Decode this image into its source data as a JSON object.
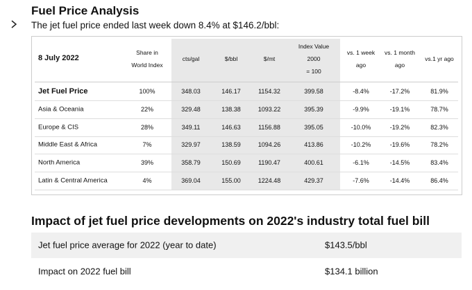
{
  "header": {
    "title": "Fuel Price Analysis",
    "subtitle": "The jet fuel price ended last week down 8.4% at $146.2/bbl:"
  },
  "table": {
    "columns": [
      [
        "8 July 2022"
      ],
      [
        "Share in",
        "World Index"
      ],
      [
        "cts/gal"
      ],
      [
        "$/bbl"
      ],
      [
        "$/mt"
      ],
      [
        "Index Value",
        "2000",
        "= 100"
      ],
      [
        "vs. 1 week",
        "ago"
      ],
      [
        "vs. 1 month",
        "ago"
      ],
      [
        "vs.1 yr ago"
      ]
    ],
    "rows": [
      [
        "Jet Fuel Price",
        "100%",
        "348.03",
        "146.17",
        "1154.32",
        "399.58",
        "-8.4%",
        "-17.2%",
        "81.9%"
      ],
      [
        "Asia & Oceania",
        "22%",
        "329.48",
        "138.38",
        "1093.22",
        "395.39",
        "-9.9%",
        "-19.1%",
        "78.7%"
      ],
      [
        "Europe & CIS",
        "28%",
        "349.11",
        "146.63",
        "1156.88",
        "395.05",
        "-10.0%",
        "-19.2%",
        "82.3%"
      ],
      [
        "Middle East & Africa",
        "7%",
        "329.97",
        "138.59",
        "1094.26",
        "413.86",
        "-10.2%",
        "-19.6%",
        "78.2%"
      ],
      [
        "North America",
        "39%",
        "358.79",
        "150.69",
        "1190.47",
        "400.61",
        "-6.1%",
        "-14.5%",
        "83.4%"
      ],
      [
        "Latin & Central America",
        "4%",
        "369.04",
        "155.00",
        "1224.48",
        "429.37",
        "-7.6%",
        "-14.4%",
        "86.4%"
      ]
    ]
  },
  "impact": {
    "title": "Impact of jet fuel price developments on 2022's industry total fuel bill",
    "rows": [
      [
        "Jet fuel price average for 2022 (year to date)",
        "$143.5/bbl"
      ],
      [
        "Impact on 2022 fuel bill",
        "$134.1 billion"
      ]
    ]
  }
}
